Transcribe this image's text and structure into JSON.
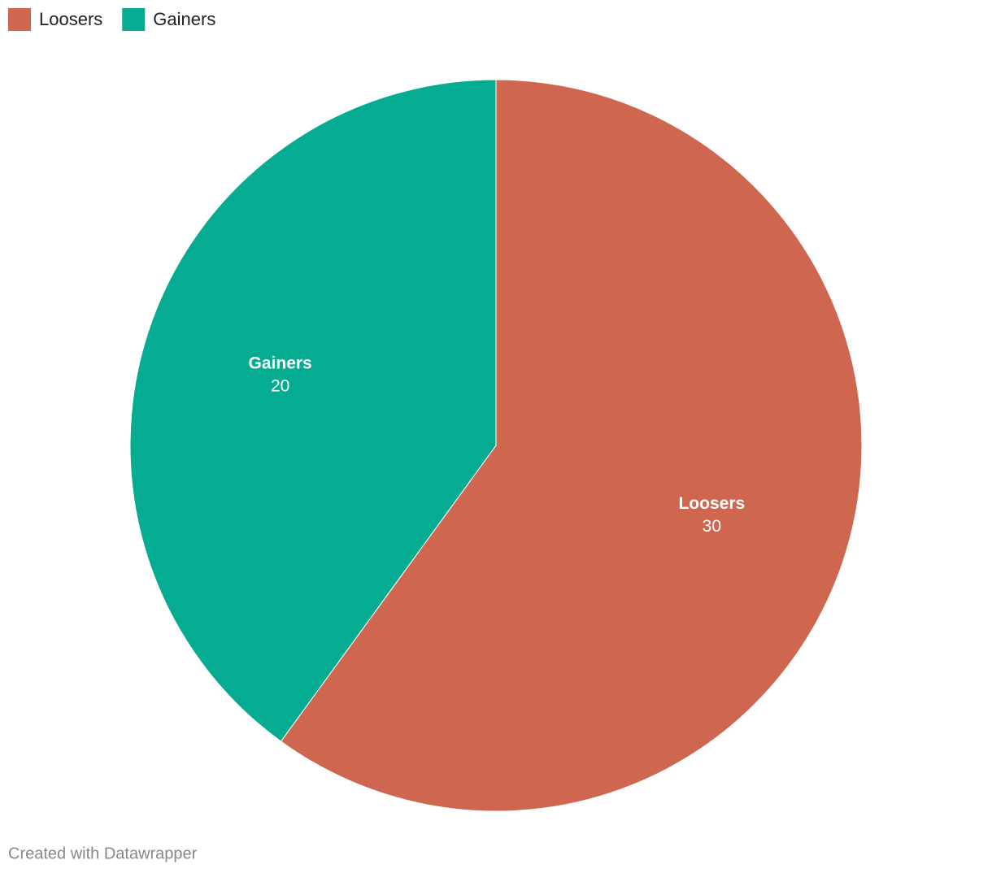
{
  "chart_data": {
    "type": "pie",
    "categories": [
      "Loosers",
      "Gainers"
    ],
    "values": [
      30,
      20
    ],
    "colors": [
      "#cf6750",
      "#05ac91"
    ],
    "legend": "top-left",
    "footer": "Created with Datawrapper"
  }
}
